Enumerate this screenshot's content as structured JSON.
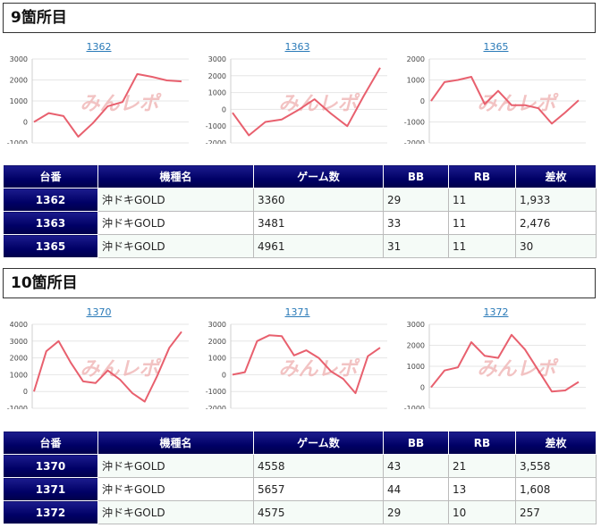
{
  "colors": {
    "line": "#e8606e",
    "header_bg": "#000066",
    "link": "#2a7ab8",
    "watermark": "#f0b5b5"
  },
  "sections": [
    {
      "title": "9箇所目",
      "headers": [
        "台番",
        "機種名",
        "ゲーム数",
        "BB",
        "RB",
        "差枚"
      ],
      "charts": [
        {
          "title": "1362",
          "watermark": "みんレポ",
          "ymin": -1000,
          "ymax": 3000,
          "yticks": [
            "3000",
            "2000",
            "1000",
            "0",
            "-1000"
          ],
          "values": [
            0,
            420,
            280,
            -700,
            -50,
            750,
            950,
            2280,
            2150,
            1980,
            1930
          ]
        },
        {
          "title": "1363",
          "watermark": "みんレポ",
          "ymin": -2000,
          "ymax": 3000,
          "yticks": [
            "3000",
            "2000",
            "1000",
            "0",
            "-1000",
            "-2000"
          ],
          "values": [
            -200,
            -1550,
            -750,
            -600,
            -50,
            600,
            -250,
            -1000,
            800,
            2476
          ]
        },
        {
          "title": "1365",
          "watermark": "みんレポ",
          "ymin": -2000,
          "ymax": 2000,
          "yticks": [
            "2000",
            "1000",
            "0",
            "-1000",
            "-2000"
          ],
          "values": [
            0,
            900,
            1000,
            1150,
            -150,
            480,
            -200,
            -200,
            -350,
            -1080,
            -550,
            30
          ]
        }
      ],
      "rows": [
        {
          "num": "1362",
          "model": "沖ドキGOLD",
          "games": "3360",
          "bb": "29",
          "rb": "11",
          "diff": "1,933"
        },
        {
          "num": "1363",
          "model": "沖ドキGOLD",
          "games": "3481",
          "bb": "33",
          "rb": "11",
          "diff": "2,476"
        },
        {
          "num": "1365",
          "model": "沖ドキGOLD",
          "games": "4961",
          "bb": "31",
          "rb": "11",
          "diff": "30"
        }
      ]
    },
    {
      "title": "10箇所目",
      "headers": [
        "台番",
        "機種名",
        "ゲーム数",
        "BB",
        "RB",
        "差枚"
      ],
      "charts": [
        {
          "title": "1370",
          "watermark": "みんレポ",
          "ymin": -1000,
          "ymax": 4000,
          "yticks": [
            "4000",
            "3000",
            "2000",
            "1000",
            "0",
            "-1000"
          ],
          "values": [
            0,
            2400,
            3000,
            1700,
            600,
            500,
            1250,
            700,
            -100,
            -600,
            900,
            2600,
            3558
          ]
        },
        {
          "title": "1371",
          "watermark": "みんレポ",
          "ymin": -2000,
          "ymax": 3000,
          "yticks": [
            "3000",
            "2000",
            "1000",
            "0",
            "-1000",
            "-2000"
          ],
          "values": [
            0,
            150,
            2000,
            2350,
            2300,
            1150,
            1450,
            1000,
            200,
            -250,
            -1100,
            1100,
            1608
          ]
        },
        {
          "title": "1372",
          "watermark": "みんレポ",
          "ymin": -1000,
          "ymax": 3000,
          "yticks": [
            "3000",
            "2000",
            "1000",
            "0",
            "-1000"
          ],
          "values": [
            0,
            800,
            950,
            2150,
            1500,
            1400,
            2500,
            1800,
            800,
            -200,
            -150,
            257
          ]
        }
      ],
      "rows": [
        {
          "num": "1370",
          "model": "沖ドキGOLD",
          "games": "4558",
          "bb": "43",
          "rb": "21",
          "diff": "3,558"
        },
        {
          "num": "1371",
          "model": "沖ドキGOLD",
          "games": "5657",
          "bb": "44",
          "rb": "13",
          "diff": "1,608"
        },
        {
          "num": "1372",
          "model": "沖ドキGOLD",
          "games": "4575",
          "bb": "29",
          "rb": "10",
          "diff": "257"
        }
      ]
    }
  ]
}
